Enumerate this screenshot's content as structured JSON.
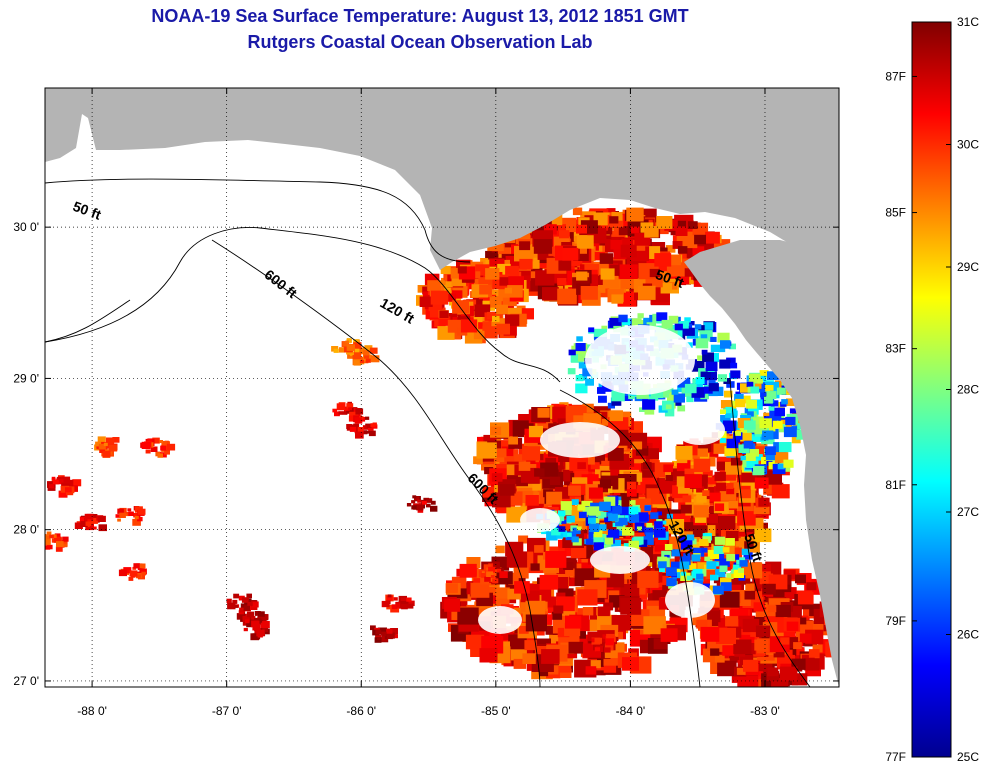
{
  "title": {
    "line1": "NOAA-19 Sea Surface Temperature:  August 13, 2012 1851 GMT",
    "line2": "Rutgers Coastal Ocean Observation Lab"
  },
  "map": {
    "region": "Northeastern Gulf of Mexico",
    "lon_range": [
      -88.35,
      -82.45
    ],
    "lat_range": [
      26.96,
      30.92
    ],
    "lon_ticks": [
      {
        "value": -88,
        "label": "-88 0'"
      },
      {
        "value": -87,
        "label": "-87 0'"
      },
      {
        "value": -86,
        "label": "-86 0'"
      },
      {
        "value": -85,
        "label": "-85 0'"
      },
      {
        "value": -84,
        "label": "-84 0'"
      },
      {
        "value": -83,
        "label": "-83 0'"
      }
    ],
    "lat_ticks": [
      {
        "value": 30,
        "label": "30 0'"
      },
      {
        "value": 29,
        "label": "29 0'"
      },
      {
        "value": 28,
        "label": "28 0'"
      },
      {
        "value": 27,
        "label": "27 0'"
      }
    ],
    "contour_labels": [
      {
        "text": "50 ft",
        "lon": -88.05,
        "lat": 30.08
      },
      {
        "text": "600 ft",
        "lon": -86.62,
        "lat": 29.6
      },
      {
        "text": "120 ft",
        "lon": -85.75,
        "lat": 29.42
      },
      {
        "text": "50 ft",
        "lon": -83.72,
        "lat": 29.63
      },
      {
        "text": "600 ft",
        "lon": -85.12,
        "lat": 28.25
      },
      {
        "text": "120 ft",
        "lon": -83.65,
        "lat": 27.93
      },
      {
        "text": "50 ft",
        "lon": -83.12,
        "lat": 27.87
      }
    ],
    "colors": {
      "land": "#b4b4b4",
      "nodata": "#ffffff",
      "contour": "#000000"
    }
  },
  "colorbar": {
    "celsius_ticks": [
      {
        "value": 31,
        "label": "31C"
      },
      {
        "value": 30,
        "label": "30C"
      },
      {
        "value": 29,
        "label": "29C"
      },
      {
        "value": 28,
        "label": "28C"
      },
      {
        "value": 27,
        "label": "27C"
      },
      {
        "value": 26,
        "label": "26C"
      },
      {
        "value": 25,
        "label": "25C"
      }
    ],
    "fahrenheit_ticks": [
      {
        "value": 87,
        "label": "87F"
      },
      {
        "value": 85,
        "label": "85F"
      },
      {
        "value": 83,
        "label": "83F"
      },
      {
        "value": 81,
        "label": "81F"
      },
      {
        "value": 79,
        "label": "79F"
      },
      {
        "value": 77,
        "label": "77F"
      }
    ],
    "range_c": [
      25,
      31
    ],
    "stops": [
      "#00008f",
      "#0000ff",
      "#0080ff",
      "#00ffff",
      "#80ff80",
      "#ffff00",
      "#ff8000",
      "#ff0000",
      "#800000"
    ]
  }
}
